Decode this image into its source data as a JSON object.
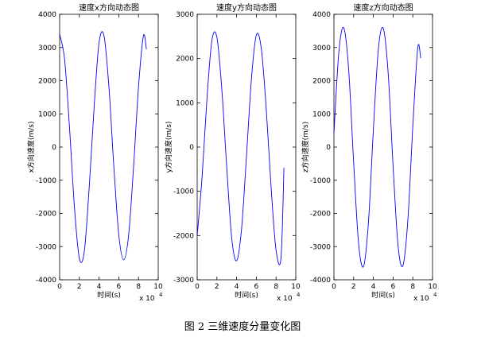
{
  "caption": "图 2  三维速度分量变化图",
  "chart_data": [
    {
      "type": "line",
      "title": "速度x方向动态图",
      "xlabel": "时间(s)",
      "ylabel": "x方向速度(m/s)",
      "xlim": [
        0,
        100000
      ],
      "ylim": [
        -4000,
        4000
      ],
      "x_exponent_label": "x 10",
      "x_exponent_power": "4",
      "x_ticks": [
        0,
        2,
        4,
        6,
        8,
        10
      ],
      "x_tick_labels": [
        "0",
        "2",
        "4",
        "6",
        "8",
        "10"
      ],
      "y_ticks": [
        -4000,
        -3000,
        -2000,
        -1000,
        0,
        1000,
        2000,
        3000,
        4000
      ],
      "y_tick_labels": [
        "-4000",
        "-3000",
        "-2000",
        "-1000",
        "0",
        "1000",
        "2000",
        "3000",
        "4000"
      ],
      "line_color": "#0000ff",
      "series": [
        {
          "x": [
            0,
            5000,
            10000,
            15000,
            20000,
            25000,
            30000,
            35000,
            40000,
            45000,
            50000,
            55000,
            60000,
            65000,
            70000,
            75000,
            80000,
            85000,
            88000
          ],
          "y": [
            3400,
            2650,
            594,
            -1810,
            -3350,
            -3150,
            -1210,
            1210,
            3150,
            3350,
            1810,
            -594,
            -2650,
            -3400,
            -2650,
            -594,
            1810,
            3350,
            2950
          ]
        }
      ]
    },
    {
      "type": "line",
      "title": "速度y方向动态图",
      "xlabel": "时间(s)",
      "ylabel": "y方向速度(m/s)",
      "xlim": [
        0,
        100000
      ],
      "ylim": [
        -3000,
        3000
      ],
      "x_exponent_label": "x 10",
      "x_exponent_power": "4",
      "x_ticks": [
        0,
        2,
        4,
        6,
        8,
        10
      ],
      "x_tick_labels": [
        "0",
        "2",
        "4",
        "6",
        "8",
        "10"
      ],
      "y_ticks": [
        -3000,
        -2000,
        -1000,
        0,
        1000,
        2000,
        3000
      ],
      "y_tick_labels": [
        "-3000",
        "-2000",
        "-1000",
        "0",
        "1000",
        "2000",
        "3000"
      ],
      "line_color": "#0000ff",
      "series": [
        {
          "x": [
            0,
            5000,
            10000,
            15000,
            20000,
            25000,
            30000,
            35000,
            40000,
            45000,
            50000,
            55000,
            60000,
            65000,
            70000,
            75000,
            80000,
            85000,
            88000
          ],
          "y": [
            -2000,
            -670,
            1120,
            2420,
            2480,
            1300,
            -470,
            -2050,
            -2570,
            -1850,
            -210,
            1530,
            2530,
            2230,
            880,
            -920,
            -2330,
            -2510,
            -470
          ]
        }
      ]
    },
    {
      "type": "line",
      "title": "速度z方向动态图",
      "xlabel": "时间(s)",
      "ylabel": "z方向速度(m/s)",
      "xlim": [
        0,
        100000
      ],
      "ylim": [
        -4000,
        4000
      ],
      "x_exponent_label": "x 10",
      "x_exponent_power": "4",
      "x_ticks": [
        0,
        2,
        4,
        6,
        8,
        10
      ],
      "x_tick_labels": [
        "0",
        "2",
        "4",
        "6",
        "8",
        "10"
      ],
      "y_ticks": [
        -4000,
        -3000,
        -2000,
        -1000,
        0,
        1000,
        2000,
        3000,
        4000
      ],
      "y_tick_labels": [
        "-4000",
        "-3000",
        "-2000",
        "-1000",
        "0",
        "1000",
        "2000",
        "3000",
        "4000"
      ],
      "line_color": "#0000ff",
      "series": [
        {
          "x": [
            0,
            5000,
            10000,
            15000,
            20000,
            25000,
            30000,
            35000,
            40000,
            45000,
            50000,
            55000,
            60000,
            65000,
            70000,
            75000,
            80000,
            85000,
            88000
          ],
          "y": [
            420,
            2870,
            3590,
            2310,
            -470,
            -2900,
            -3600,
            -2270,
            520,
            2930,
            3580,
            2230,
            -570,
            -2960,
            -3570,
            -2190,
            620,
            2990,
            2680
          ]
        }
      ]
    }
  ]
}
